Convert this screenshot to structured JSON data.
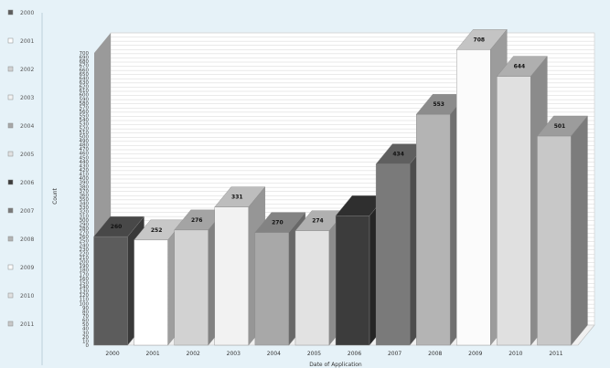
{
  "chart_data": {
    "type": "bar",
    "title": "",
    "xlabel": "Date of Application",
    "ylabel": "Count",
    "ylim": [
      0,
      700
    ],
    "ytick_step": 10,
    "grid": true,
    "legend_position": "left",
    "categories": [
      "2000",
      "2001",
      "2002",
      "2003",
      "2004",
      "2005",
      "2006",
      "2007",
      "2008",
      "2009",
      "2010",
      "2011"
    ],
    "values": [
      260,
      252,
      276,
      331,
      270,
      274,
      310,
      434,
      553,
      708,
      644,
      501
    ],
    "value_labels": [
      "260",
      "252",
      "276",
      "331",
      "270",
      "274",
      "",
      "434",
      "553",
      "708",
      "644",
      "501"
    ],
    "colors": [
      "#5c5c5c",
      "#ffffff",
      "#d2d2d2",
      "#f2f2f2",
      "#a8a8a8",
      "#e2e2e2",
      "#3c3c3c",
      "#7a7a7a",
      "#b4b4b4",
      "#fbfbfb",
      "#e0e0e0",
      "#c8c8c8"
    ],
    "legend": [
      "2000",
      "2001",
      "2002",
      "2003",
      "2004",
      "2005",
      "2006",
      "2007",
      "2008",
      "2009",
      "2010",
      "2011"
    ]
  }
}
